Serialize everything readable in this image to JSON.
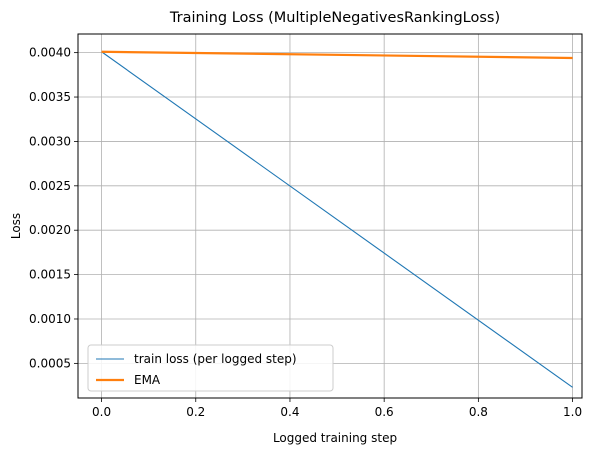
{
  "chart_data": {
    "type": "line",
    "title": "Training Loss (MultipleNegativesRankingLoss)",
    "xlabel": "Logged training step",
    "ylabel": "Loss",
    "xlim": [
      -0.05,
      1.02
    ],
    "ylim": [
      0.00011,
      0.00421
    ],
    "xticks": [
      0.0,
      0.2,
      0.4,
      0.6,
      0.8,
      1.0
    ],
    "xtick_labels": [
      "0.0",
      "0.2",
      "0.4",
      "0.6",
      "0.8",
      "1.0"
    ],
    "yticks": [
      0.0005,
      0.001,
      0.0015,
      0.002,
      0.0025,
      0.003,
      0.0035,
      0.004
    ],
    "ytick_labels": [
      "0.0005",
      "0.0010",
      "0.0015",
      "0.0020",
      "0.0025",
      "0.0030",
      "0.0035",
      "0.0040"
    ],
    "grid": true,
    "legend_position": "lower-left",
    "series": [
      {
        "name": "train loss (per logged step)",
        "color": "#1f77b4",
        "x": [
          0.0,
          1.0
        ],
        "values": [
          0.00401,
          0.00023
        ]
      },
      {
        "name": "EMA",
        "color": "#ff7f0e",
        "x": [
          0.0,
          1.0
        ],
        "values": [
          0.00401,
          0.00394
        ]
      }
    ]
  }
}
